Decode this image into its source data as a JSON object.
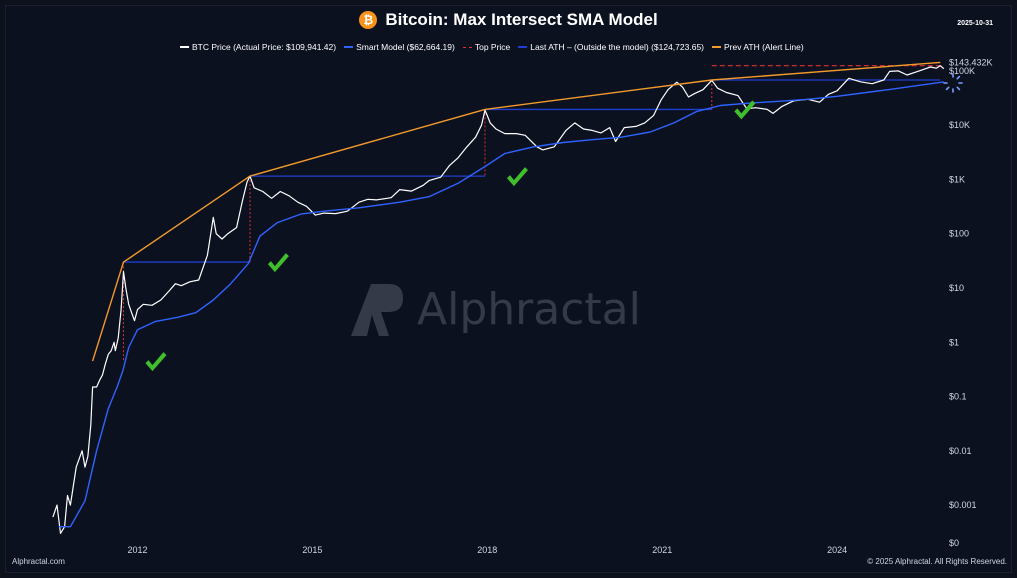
{
  "title": "Bitcoin: Max Intersect SMA Model",
  "date": "2025-10-31",
  "legend": [
    {
      "label": "BTC Price (Actual Price: $109,941.42)",
      "color": "#ffffff",
      "style": "solid"
    },
    {
      "label": "Smart Model ($62,664.19)",
      "color": "#2f63ff",
      "style": "solid"
    },
    {
      "label": "Top Price",
      "color": "#e03030",
      "style": "dash"
    },
    {
      "label": "Last ATH – (Outside the model) ($124,723.65)",
      "color": "#1f3fd0",
      "style": "solid"
    },
    {
      "label": "Prev ATH (Alert Line)",
      "color": "#f39a2c",
      "style": "solid"
    }
  ],
  "footer_left": "Alphractal.com",
  "footer_right": "© 2025 Alphractal. All Rights Reserved.",
  "watermark": "Alphractal",
  "chart_data": {
    "type": "line",
    "yscale": "log",
    "ylim": [
      0.0002,
      300000
    ],
    "xlim": [
      2010.5,
      2025.85
    ],
    "x_ticks": [
      {
        "v": 2012,
        "label": "2012"
      },
      {
        "v": 2015,
        "label": "2015"
      },
      {
        "v": 2018,
        "label": "2018"
      },
      {
        "v": 2021,
        "label": "2021"
      },
      {
        "v": 2024,
        "label": "2024"
      }
    ],
    "y_ticks": [
      {
        "v": 0.0002,
        "label": "$0"
      },
      {
        "v": 0.001,
        "label": "$0.001"
      },
      {
        "v": 0.01,
        "label": "$0.01"
      },
      {
        "v": 0.1,
        "label": "$0.1"
      },
      {
        "v": 1,
        "label": "$1"
      },
      {
        "v": 10,
        "label": "$10"
      },
      {
        "v": 100,
        "label": "$100"
      },
      {
        "v": 1000,
        "label": "$1K"
      },
      {
        "v": 10000,
        "label": "$10K"
      },
      {
        "v": 100000,
        "label": "$100K"
      }
    ],
    "last_price_label": {
      "v": 143432,
      "label": "$143.432K"
    },
    "series": [
      {
        "name": "BTC Price",
        "color": "#ffffff",
        "points": [
          [
            2010.55,
            0.0006
          ],
          [
            2010.62,
            0.001
          ],
          [
            2010.68,
            0.0003
          ],
          [
            2010.75,
            0.0004
          ],
          [
            2010.8,
            0.0015
          ],
          [
            2010.85,
            0.001
          ],
          [
            2010.95,
            0.005
          ],
          [
            2011.05,
            0.01
          ],
          [
            2011.1,
            0.005
          ],
          [
            2011.15,
            0.008
          ],
          [
            2011.2,
            0.03
          ],
          [
            2011.23,
            0.15
          ],
          [
            2011.3,
            0.15
          ],
          [
            2011.35,
            0.2
          ],
          [
            2011.4,
            0.25
          ],
          [
            2011.45,
            0.4
          ],
          [
            2011.5,
            0.6
          ],
          [
            2011.55,
            0.7
          ],
          [
            2011.6,
            1.0
          ],
          [
            2011.62,
            0.7
          ],
          [
            2011.67,
            1.2
          ],
          [
            2011.72,
            4
          ],
          [
            2011.76,
            20
          ],
          [
            2011.8,
            10
          ],
          [
            2011.85,
            5
          ],
          [
            2011.9,
            3.5
          ],
          [
            2011.95,
            2.5
          ],
          [
            2012.0,
            4
          ],
          [
            2012.1,
            5
          ],
          [
            2012.25,
            4.8
          ],
          [
            2012.4,
            6
          ],
          [
            2012.55,
            9
          ],
          [
            2012.65,
            12
          ],
          [
            2012.75,
            11
          ],
          [
            2012.9,
            13
          ],
          [
            2013.05,
            14
          ],
          [
            2013.2,
            40
          ],
          [
            2013.3,
            200
          ],
          [
            2013.35,
            100
          ],
          [
            2013.45,
            80
          ],
          [
            2013.55,
            100
          ],
          [
            2013.7,
            130
          ],
          [
            2013.8,
            400
          ],
          [
            2013.88,
            900
          ],
          [
            2013.93,
            1150
          ],
          [
            2014.0,
            700
          ],
          [
            2014.15,
            600
          ],
          [
            2014.3,
            450
          ],
          [
            2014.45,
            600
          ],
          [
            2014.6,
            500
          ],
          [
            2014.75,
            380
          ],
          [
            2014.9,
            320
          ],
          [
            2015.05,
            220
          ],
          [
            2015.2,
            240
          ],
          [
            2015.4,
            235
          ],
          [
            2015.6,
            260
          ],
          [
            2015.8,
            380
          ],
          [
            2015.95,
            430
          ],
          [
            2016.1,
            420
          ],
          [
            2016.35,
            460
          ],
          [
            2016.5,
            650
          ],
          [
            2016.7,
            610
          ],
          [
            2016.9,
            780
          ],
          [
            2017.0,
            950
          ],
          [
            2017.2,
            1100
          ],
          [
            2017.35,
            1800
          ],
          [
            2017.5,
            2500
          ],
          [
            2017.65,
            4000
          ],
          [
            2017.8,
            6000
          ],
          [
            2017.9,
            10000
          ],
          [
            2017.96,
            19000
          ],
          [
            2018.05,
            11000
          ],
          [
            2018.15,
            8500
          ],
          [
            2018.3,
            7000
          ],
          [
            2018.5,
            7000
          ],
          [
            2018.65,
            6500
          ],
          [
            2018.85,
            4000
          ],
          [
            2018.95,
            3500
          ],
          [
            2019.15,
            4000
          ],
          [
            2019.35,
            8000
          ],
          [
            2019.5,
            11000
          ],
          [
            2019.65,
            8500
          ],
          [
            2019.8,
            8000
          ],
          [
            2019.95,
            7200
          ],
          [
            2020.1,
            9000
          ],
          [
            2020.2,
            5000
          ],
          [
            2020.35,
            9000
          ],
          [
            2020.55,
            9500
          ],
          [
            2020.7,
            11000
          ],
          [
            2020.85,
            15000
          ],
          [
            2020.98,
            29000
          ],
          [
            2021.1,
            45000
          ],
          [
            2021.25,
            62000
          ],
          [
            2021.35,
            50000
          ],
          [
            2021.45,
            33000
          ],
          [
            2021.55,
            38000
          ],
          [
            2021.7,
            45000
          ],
          [
            2021.85,
            67000
          ],
          [
            2021.95,
            48000
          ],
          [
            2022.1,
            40000
          ],
          [
            2022.3,
            35000
          ],
          [
            2022.45,
            20000
          ],
          [
            2022.6,
            21000
          ],
          [
            2022.8,
            19500
          ],
          [
            2022.9,
            16500
          ],
          [
            2023.05,
            22000
          ],
          [
            2023.25,
            28000
          ],
          [
            2023.5,
            30000
          ],
          [
            2023.7,
            26500
          ],
          [
            2023.85,
            37000
          ],
          [
            2024.0,
            43000
          ],
          [
            2024.2,
            73000
          ],
          [
            2024.4,
            63000
          ],
          [
            2024.6,
            58000
          ],
          [
            2024.8,
            68000
          ],
          [
            2024.9,
            98000
          ],
          [
            2025.05,
            100000
          ],
          [
            2025.2,
            84000
          ],
          [
            2025.35,
            95000
          ],
          [
            2025.5,
            108000
          ],
          [
            2025.6,
            118000
          ],
          [
            2025.7,
            112000
          ],
          [
            2025.77,
            124700
          ],
          [
            2025.83,
            109941
          ]
        ]
      },
      {
        "name": "Smart Model",
        "color": "#2f63ff",
        "points": [
          [
            2010.65,
            0.0004
          ],
          [
            2010.85,
            0.0004
          ],
          [
            2011.1,
            0.0012
          ],
          [
            2011.3,
            0.01
          ],
          [
            2011.5,
            0.06
          ],
          [
            2011.65,
            0.15
          ],
          [
            2011.75,
            0.3
          ],
          [
            2011.85,
            0.8
          ],
          [
            2012.0,
            1.7
          ],
          [
            2012.3,
            2.4
          ],
          [
            2012.7,
            2.9
          ],
          [
            2013.0,
            3.5
          ],
          [
            2013.3,
            6
          ],
          [
            2013.6,
            12
          ],
          [
            2013.9,
            28
          ],
          [
            2014.1,
            90
          ],
          [
            2014.4,
            160
          ],
          [
            2014.8,
            230
          ],
          [
            2015.2,
            260
          ],
          [
            2015.8,
            300
          ],
          [
            2016.5,
            380
          ],
          [
            2017.0,
            480
          ],
          [
            2017.5,
            850
          ],
          [
            2017.95,
            1700
          ],
          [
            2018.3,
            3000
          ],
          [
            2018.8,
            4000
          ],
          [
            2019.3,
            4800
          ],
          [
            2019.8,
            5400
          ],
          [
            2020.3,
            6000
          ],
          [
            2020.8,
            7500
          ],
          [
            2021.2,
            11000
          ],
          [
            2021.6,
            18000
          ],
          [
            2022.0,
            23000
          ],
          [
            2022.5,
            25500
          ],
          [
            2023.0,
            27500
          ],
          [
            2023.5,
            30000
          ],
          [
            2024.0,
            34000
          ],
          [
            2024.5,
            40000
          ],
          [
            2025.0,
            47000
          ],
          [
            2025.5,
            56000
          ],
          [
            2025.83,
            62664
          ]
        ]
      },
      {
        "name": "Prev ATH (Alert Line)",
        "color": "#f39a2c",
        "points": [
          [
            2011.23,
            0.45
          ],
          [
            2011.76,
            30
          ],
          [
            2013.93,
            1150
          ],
          [
            2017.96,
            19500
          ],
          [
            2021.85,
            68000
          ],
          [
            2025.77,
            143432
          ]
        ]
      }
    ],
    "ath_levels": [
      {
        "from": 2011.76,
        "to": 2013.93,
        "y": 30
      },
      {
        "from": 2013.93,
        "to": 2017.96,
        "y": 1150
      },
      {
        "from": 2017.96,
        "to": 2021.85,
        "y": 19500
      },
      {
        "from": 2021.85,
        "to": 2025.77,
        "y": 68000
      }
    ],
    "top_price_drops": [
      {
        "x": 2011.76,
        "from": 30,
        "to": 0.45
      },
      {
        "x": 2013.93,
        "from": 1150,
        "to": 30
      },
      {
        "x": 2017.96,
        "from": 19500,
        "to": 1150
      },
      {
        "x": 2021.85,
        "from": 68000,
        "to": 19500
      }
    ],
    "top_price_level": {
      "from": 2021.85,
      "to": 2025.83,
      "y": 124723
    },
    "checkmarks": [
      2012.0,
      2014.1,
      2018.2,
      2022.1
    ]
  }
}
